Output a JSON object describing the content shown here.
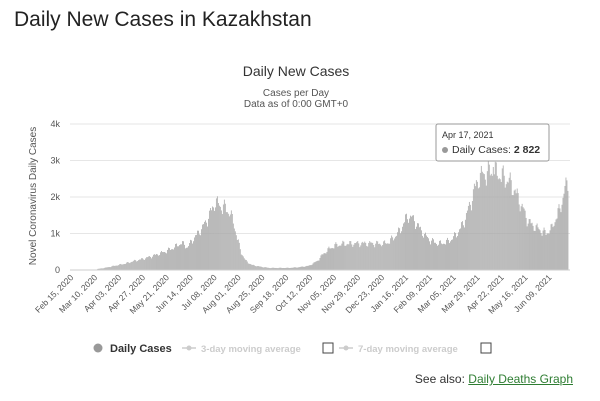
{
  "page": {
    "title": "Daily New Cases in Kazakhstan",
    "see_also_label": "See also:",
    "see_also_link": "Daily Deaths Graph"
  },
  "colors": {
    "bar": "#a8a8a8",
    "text": "#333333",
    "link": "#2e7d32",
    "tooltip_border": "#999999",
    "legend_disabled": "#cccccc"
  },
  "legend": {
    "items": [
      {
        "label": "Daily Cases",
        "icon": "circle-icon",
        "active": true
      },
      {
        "label": "3-day moving average",
        "icon": "line-marker-icon",
        "active": false
      },
      {
        "label": "7-day moving average",
        "icon": "line-marker-icon",
        "active": false
      }
    ]
  },
  "tooltip": {
    "date": "Apr 17, 2021",
    "series": "Daily Cases",
    "value": "2 822"
  },
  "chart_data": {
    "type": "bar",
    "title": "Daily New Cases",
    "subtitle_1": "Cases per Day",
    "subtitle_2": "Data as of 0:00 GMT+0",
    "ylabel": "Novel Coronavirus Daily Cases",
    "xlabel": "",
    "ylim": [
      0,
      4000
    ],
    "yticks": [
      0,
      1000,
      2000,
      3000,
      4000
    ],
    "ytick_labels": [
      "0",
      "1k",
      "2k",
      "3k",
      "4k"
    ],
    "xtick_labels": [
      "Feb 15, 2020",
      "Mar 10, 2020",
      "Apr 03, 2020",
      "Apr 27, 2020",
      "May 21, 2020",
      "Jun 14, 2020",
      "Jul 08, 2020",
      "Aug 01, 2020",
      "Aug 25, 2020",
      "Sep 18, 2020",
      "Oct 12, 2020",
      "Nov 05, 2020",
      "Nov 29, 2020",
      "Dec 23, 2020",
      "Jan 16, 2021",
      "Feb 09, 2021",
      "Mar 05, 2021",
      "Mar 29, 2021",
      "Apr 22, 2021",
      "May 16, 2021",
      "Jun 09, 2021"
    ],
    "xtick_day_offsets": [
      0,
      24,
      48,
      72,
      96,
      120,
      144,
      168,
      192,
      216,
      240,
      264,
      288,
      312,
      336,
      360,
      384,
      408,
      432,
      456,
      480
    ],
    "start_date": "Feb 15, 2020",
    "series_name": "Daily Cases",
    "keypoints_day_value": [
      [
        0,
        0
      ],
      [
        26,
        0
      ],
      [
        28,
        30
      ],
      [
        35,
        60
      ],
      [
        45,
        120
      ],
      [
        55,
        180
      ],
      [
        65,
        260
      ],
      [
        75,
        330
      ],
      [
        85,
        420
      ],
      [
        95,
        520
      ],
      [
        105,
        650
      ],
      [
        112,
        780
      ],
      [
        118,
        650
      ],
      [
        124,
        900
      ],
      [
        130,
        1100
      ],
      [
        136,
        1350
      ],
      [
        142,
        1700
      ],
      [
        146,
        1950
      ],
      [
        150,
        1850
      ],
      [
        156,
        1780
      ],
      [
        160,
        1650
      ],
      [
        164,
        1400
      ],
      [
        168,
        900
      ],
      [
        172,
        500
      ],
      [
        176,
        280
      ],
      [
        182,
        150
      ],
      [
        190,
        100
      ],
      [
        200,
        60
      ],
      [
        220,
        60
      ],
      [
        230,
        80
      ],
      [
        240,
        120
      ],
      [
        248,
        250
      ],
      [
        254,
        450
      ],
      [
        260,
        600
      ],
      [
        266,
        700
      ],
      [
        275,
        750
      ],
      [
        290,
        760
      ],
      [
        305,
        760
      ],
      [
        315,
        750
      ],
      [
        320,
        800
      ],
      [
        326,
        950
      ],
      [
        332,
        1150
      ],
      [
        337,
        1450
      ],
      [
        340,
        1550
      ],
      [
        345,
        1450
      ],
      [
        350,
        1250
      ],
      [
        356,
        1000
      ],
      [
        362,
        850
      ],
      [
        370,
        750
      ],
      [
        378,
        800
      ],
      [
        384,
        900
      ],
      [
        390,
        1100
      ],
      [
        396,
        1400
      ],
      [
        402,
        1900
      ],
      [
        406,
        2300
      ],
      [
        410,
        2600
      ],
      [
        413,
        2700
      ],
      [
        418,
        2780
      ],
      [
        425,
        2822
      ],
      [
        430,
        2750
      ],
      [
        436,
        2650
      ],
      [
        442,
        2500
      ],
      [
        448,
        2200
      ],
      [
        454,
        1800
      ],
      [
        460,
        1400
      ],
      [
        466,
        1250
      ],
      [
        472,
        1150
      ],
      [
        478,
        1050
      ],
      [
        484,
        1200
      ],
      [
        488,
        1500
      ],
      [
        492,
        1750
      ],
      [
        496,
        2200
      ],
      [
        500,
        2560
      ]
    ],
    "highlight": {
      "date": "Apr 17, 2021",
      "value": 2822
    }
  }
}
